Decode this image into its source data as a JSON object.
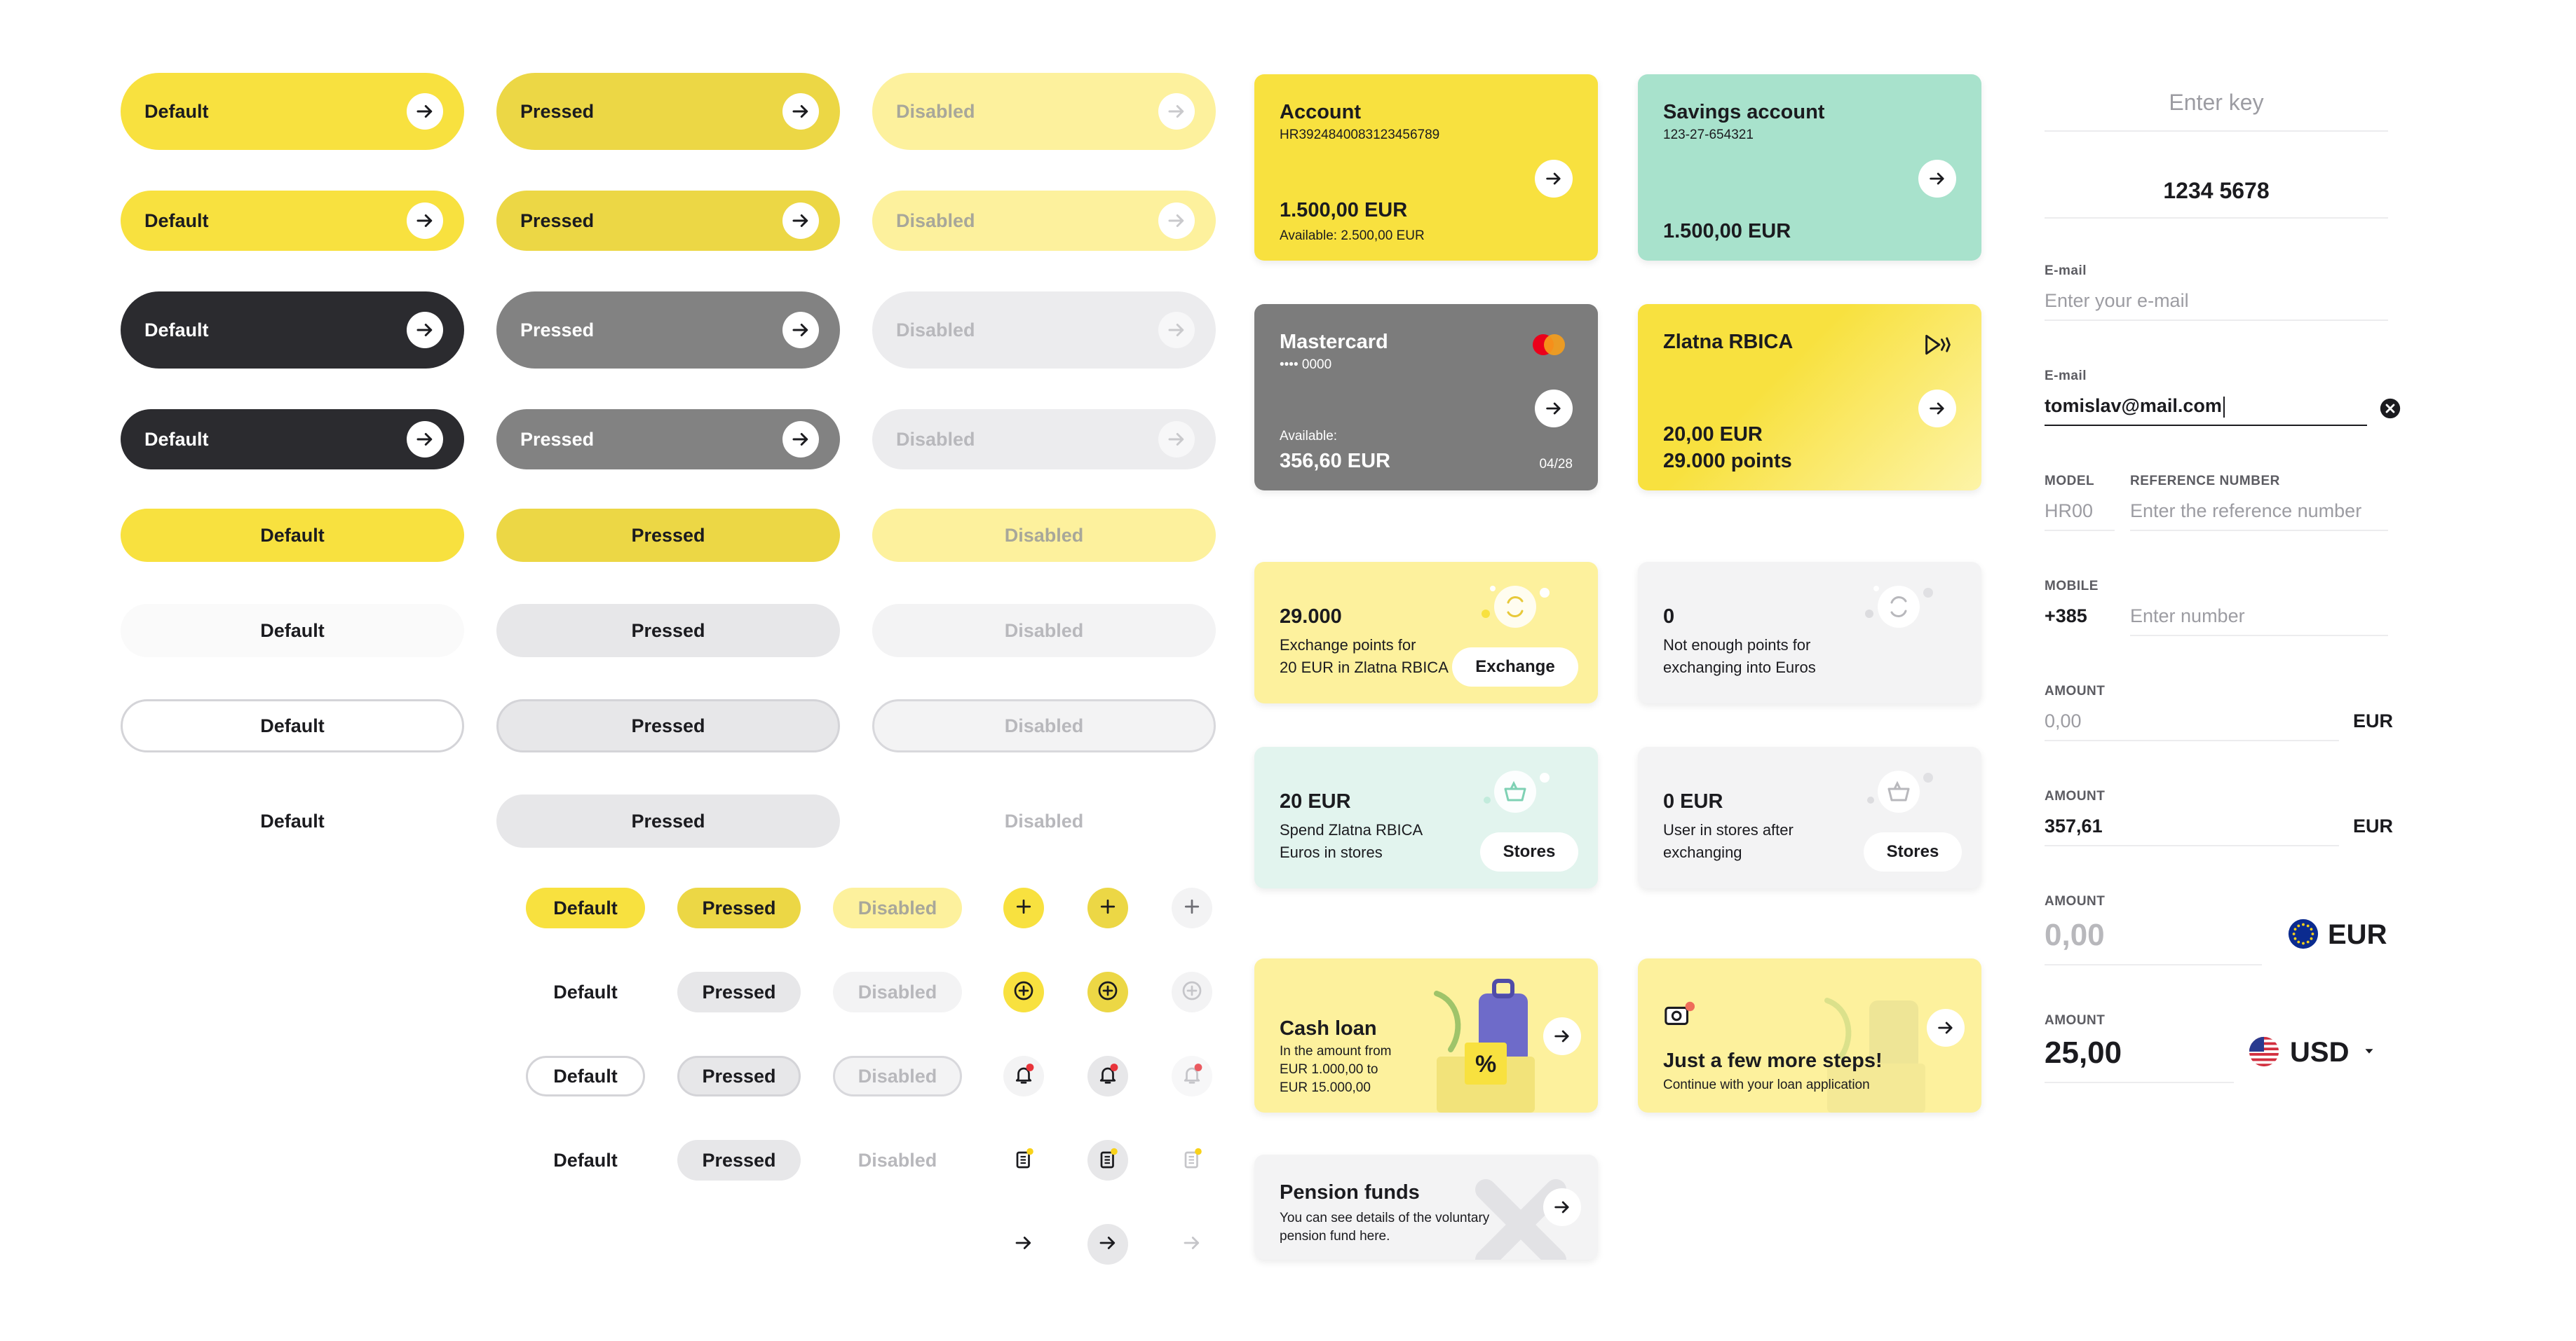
{
  "buttons": {
    "default": "Default",
    "pressed": "Pressed",
    "disabled": "Disabled"
  },
  "cards": {
    "account": {
      "title": "Account",
      "number": "HR3924840083123456789",
      "amount": "1.500,00 EUR",
      "available": "Available: 2.500,00 EUR"
    },
    "savings": {
      "title": "Savings account",
      "number": "123-27-654321",
      "amount": "1.500,00 EUR"
    },
    "mastercard": {
      "title": "Mastercard",
      "number": "•••• 0000",
      "available_label": "Available:",
      "amount": "356,60 EUR",
      "expiry": "04/28"
    },
    "zlatna": {
      "title": "Zlatna RBICA",
      "amount": "20,00 EUR",
      "points": "29.000 points"
    },
    "exchange": {
      "value": "29.000",
      "line1": "Exchange points for",
      "line2": "20 EUR in Zlatna RBICA",
      "button": "Exchange"
    },
    "not_enough": {
      "value": "0",
      "line1": "Not enough points for",
      "line2": "exchanging into Euros"
    },
    "spend": {
      "value": "20 EUR",
      "line1": "Spend Zlatna RBICA",
      "line2": "Euros in stores",
      "button": "Stores"
    },
    "spend_zero": {
      "value": "0 EUR",
      "line1": "User in stores after",
      "line2": "exchanging",
      "button": "Stores"
    },
    "cash_loan": {
      "title": "Cash loan",
      "line1": "In the amount from",
      "line2": "EUR 1.000,00 to",
      "line3": "EUR 15.000,00"
    },
    "steps": {
      "title": "Just a few more steps!",
      "subtitle": "Continue with your loan application"
    },
    "pension": {
      "title": "Pension funds",
      "line1": "You can see details of the voluntary",
      "line2": "pension fund here."
    }
  },
  "form": {
    "key_placeholder": "Enter key",
    "key_value": "1234 5678",
    "email_label": "E-mail",
    "email_placeholder": "Enter your e-mail",
    "email_label2": "E-mail",
    "email_value": "tomislav@mail.com",
    "model_label": "MODEL",
    "model_placeholder": "HR00",
    "ref_label": "REFERENCE NUMBER",
    "ref_placeholder": "Enter the reference number",
    "mobile_label": "MOBILE",
    "mobile_prefix": "+385",
    "mobile_placeholder": "Enter number",
    "amount_label": "AMOUNT",
    "amount1_placeholder": "0,00",
    "amount1_currency": "EUR",
    "amount2_value": "357,61",
    "amount2_currency": "EUR",
    "amount3_placeholder": "0,00",
    "amount3_currency": "EUR",
    "amount4_value": "25,00",
    "amount4_currency": "USD"
  },
  "colors": {
    "yellow": "#f8e13f",
    "dark": "#2b2b2f",
    "mint": "#a8e2cc",
    "grey_card": "#7c7c7c"
  },
  "icons": [
    "arrow-right-icon",
    "plus-icon",
    "plus-circle-icon",
    "bell-icon",
    "clipboard-icon",
    "mastercard-logo-icon",
    "close-circle-icon",
    "eu-flag-icon",
    "us-flag-icon",
    "chevron-down-icon"
  ]
}
